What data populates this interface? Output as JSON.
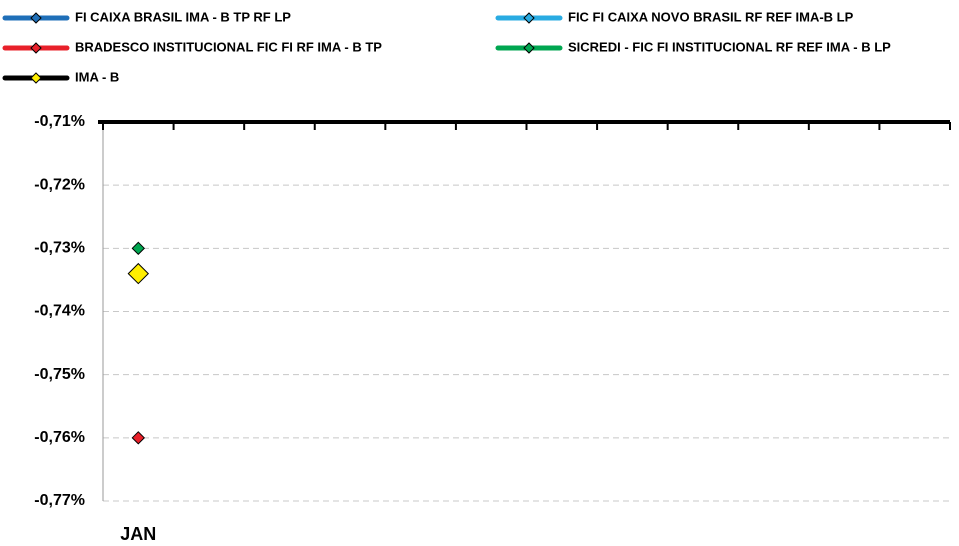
{
  "chart_data": {
    "type": "line",
    "categories": [
      "JAN",
      null,
      null,
      null,
      null,
      null,
      null,
      null,
      null,
      null,
      null,
      null
    ],
    "series": [
      {
        "name": "FI CAIXA BRASIL IMA - B TP RF LP",
        "color": "#1f6fb8",
        "values": [
          -0.734,
          null,
          null,
          null,
          null,
          null,
          null,
          null,
          null,
          null,
          null,
          null
        ]
      },
      {
        "name": "FIC FI CAIXA NOVO BRASIL RF REF IMA-B LP",
        "color": "#29abe2",
        "values": [
          -0.734,
          null,
          null,
          null,
          null,
          null,
          null,
          null,
          null,
          null,
          null,
          null
        ]
      },
      {
        "name": "BRADESCO INSTITUCIONAL FIC FI RF IMA - B TP",
        "color": "#e8202a",
        "values": [
          -0.76,
          null,
          null,
          null,
          null,
          null,
          null,
          null,
          null,
          null,
          null,
          null
        ]
      },
      {
        "name": "SICREDI - FIC FI INSTITUCIONAL RF REF IMA - B LP",
        "color": "#00a650",
        "values": [
          -0.73,
          null,
          null,
          null,
          null,
          null,
          null,
          null,
          null,
          null,
          null,
          null
        ]
      },
      {
        "name": "IMA - B",
        "color": "#000000",
        "marker_color": "#ffee00",
        "values": [
          -0.734,
          null,
          null,
          null,
          null,
          null,
          null,
          null,
          null,
          null,
          null,
          null
        ]
      }
    ],
    "ylim": [
      -0.77,
      -0.71
    ],
    "yticks": [
      {
        "value": -0.71,
        "label": "-0,71%"
      },
      {
        "value": -0.72,
        "label": "-0,72%"
      },
      {
        "value": -0.73,
        "label": "-0,73%"
      },
      {
        "value": -0.74,
        "label": "-0,74%"
      },
      {
        "value": -0.75,
        "label": "-0,75%"
      },
      {
        "value": -0.76,
        "label": "-0,76%"
      },
      {
        "value": -0.77,
        "label": "-0,77%"
      }
    ],
    "grid": true
  }
}
